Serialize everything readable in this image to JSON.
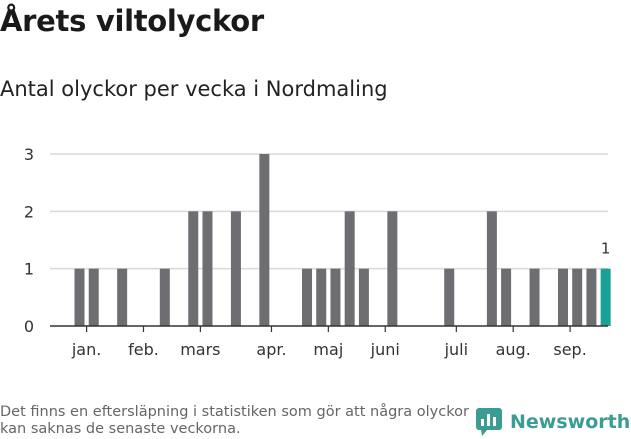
{
  "header": {
    "title": "Årets viltolyckor",
    "subtitle": "Antal olyckor per vecka i Nordmaling"
  },
  "footer": {
    "note": "Det finns en eftersläpning i statistiken som gör att några olyckor kan saknas de senaste veckorna.",
    "brand": "Newsworthy"
  },
  "colors": {
    "bar": "#6e6d72",
    "highlight": "#1aa197",
    "grid": "#d9d9d9",
    "axis": "#333333",
    "brand": "#3a9c93"
  },
  "chart_data": {
    "type": "bar",
    "xlabel": "",
    "ylabel": "",
    "ylim": [
      0,
      3
    ],
    "yticks": [
      0,
      1,
      2,
      3
    ],
    "grid": true,
    "categories": [
      "1",
      "2",
      "3",
      "4",
      "5",
      "6",
      "7",
      "8",
      "9",
      "10",
      "11",
      "12",
      "13",
      "14",
      "15",
      "16",
      "17",
      "18",
      "19",
      "20",
      "21",
      "22",
      "23",
      "24",
      "25",
      "26",
      "27",
      "28",
      "29",
      "30",
      "31",
      "32",
      "33",
      "34",
      "35",
      "36",
      "37",
      "38"
    ],
    "values": [
      1,
      1,
      0,
      1,
      0,
      0,
      1,
      0,
      2,
      2,
      0,
      2,
      0,
      3,
      0,
      0,
      1,
      1,
      1,
      2,
      1,
      0,
      2,
      0,
      0,
      0,
      1,
      0,
      0,
      2,
      1,
      0,
      1,
      0,
      1,
      1,
      1,
      1
    ],
    "highlight_index": 37,
    "highlight_label": "1",
    "month_labels": [
      {
        "label": "jan.",
        "week": 1.5
      },
      {
        "label": "feb.",
        "week": 5.5
      },
      {
        "label": "mars",
        "week": 9.5
      },
      {
        "label": "apr.",
        "week": 14.5
      },
      {
        "label": "maj",
        "week": 18.5
      },
      {
        "label": "juni",
        "week": 22.5
      },
      {
        "label": "juli",
        "week": 27.5
      },
      {
        "label": "aug.",
        "week": 31.5
      },
      {
        "label": "sep.",
        "week": 35.5
      }
    ]
  }
}
